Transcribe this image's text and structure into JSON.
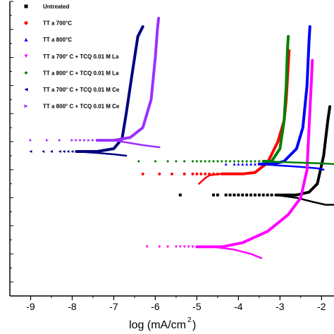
{
  "chart_data": {
    "type": "line",
    "xlabel": "log (mA/cm",
    "xlabel_sup": "2",
    "xlabel_close": ")",
    "ylabel": "",
    "xlim": [
      -9.5,
      -1.7
    ],
    "ylim": [
      -1.8,
      0.3
    ],
    "x_ticks": [
      "-9",
      "-8",
      "-7",
      "-6",
      "-5",
      "-4",
      "-3",
      "-2"
    ],
    "legend_placement": "top-left",
    "series": [
      {
        "name": "Untreated",
        "color": "#000000",
        "marker": "square",
        "curve": [
          [
            -3.1,
            -1.08
          ],
          [
            -2.6,
            -1.08
          ],
          [
            -2.3,
            -1.06
          ],
          [
            -2.1,
            -1.0
          ],
          [
            -1.95,
            -0.8
          ],
          [
            -1.85,
            -0.55
          ],
          [
            -1.8,
            -0.45
          ]
        ],
        "tail": [
          [
            -3.1,
            -1.08
          ],
          [
            -2.6,
            -1.1
          ],
          [
            -2.2,
            -1.13
          ],
          [
            -1.9,
            -1.15
          ],
          [
            -1.7,
            -1.15
          ]
        ],
        "points": [
          [
            -5.4,
            -1.08
          ],
          [
            -4.6,
            -1.08
          ],
          [
            -4.5,
            -1.08
          ],
          [
            -4.3,
            -1.08
          ],
          [
            -4.2,
            -1.08
          ],
          [
            -4.1,
            -1.08
          ],
          [
            -4.0,
            -1.08
          ],
          [
            -3.9,
            -1.08
          ],
          [
            -3.8,
            -1.08
          ],
          [
            -3.7,
            -1.08
          ],
          [
            -3.6,
            -1.08
          ],
          [
            -3.5,
            -1.08
          ],
          [
            -3.4,
            -1.08
          ],
          [
            -3.3,
            -1.08
          ],
          [
            -3.2,
            -1.08
          ]
        ]
      },
      {
        "name": "TT a 700°C",
        "color": "#ff0000",
        "marker": "circle",
        "curve": [
          [
            -4.4,
            -0.93
          ],
          [
            -3.9,
            -0.93
          ],
          [
            -3.6,
            -0.92
          ],
          [
            -3.3,
            -0.85
          ],
          [
            -3.05,
            -0.7
          ],
          [
            -2.9,
            -0.55
          ],
          [
            -2.85,
            -0.4
          ],
          [
            -2.8,
            -0.15
          ],
          [
            -2.78,
            -0.05
          ]
        ],
        "tail": [
          [
            -4.4,
            -0.93
          ],
          [
            -4.7,
            -0.94
          ],
          [
            -4.8,
            -0.96
          ],
          [
            -4.95,
            -1.0
          ]
        ],
        "points": [
          [
            -6.3,
            -0.93
          ],
          [
            -5.9,
            -0.93
          ],
          [
            -5.6,
            -0.93
          ],
          [
            -5.3,
            -0.93
          ],
          [
            -5.1,
            -0.93
          ],
          [
            -5.0,
            -0.93
          ],
          [
            -4.9,
            -0.93
          ],
          [
            -4.8,
            -0.93
          ],
          [
            -4.7,
            -0.93
          ],
          [
            -4.6,
            -0.93
          ],
          [
            -4.5,
            -0.93
          ]
        ]
      },
      {
        "name": "TT a 800°C",
        "color": "#0000ff",
        "marker": "triangle-up",
        "curve": [
          [
            -3.5,
            -0.86
          ],
          [
            -3.2,
            -0.86
          ],
          [
            -2.9,
            -0.84
          ],
          [
            -2.6,
            -0.75
          ],
          [
            -2.45,
            -0.6
          ],
          [
            -2.35,
            -0.3
          ],
          [
            -2.3,
            0.02
          ],
          [
            -2.28,
            0.12
          ]
        ],
        "tail": [
          [
            -3.5,
            -0.86
          ],
          [
            -3.0,
            -0.87
          ],
          [
            -2.5,
            -0.88
          ],
          [
            -2.1,
            -0.89
          ],
          [
            -1.95,
            -0.9
          ]
        ],
        "points": [
          [
            -4.3,
            -0.86
          ],
          [
            -4.1,
            -0.86
          ],
          [
            -4.0,
            -0.86
          ],
          [
            -3.9,
            -0.86
          ],
          [
            -3.8,
            -0.86
          ],
          [
            -3.7,
            -0.86
          ],
          [
            -3.6,
            -0.86
          ]
        ]
      },
      {
        "name": "TT a 700° C + TCQ 0.01 M La",
        "color": "#ff00ff",
        "marker": "triangle-down",
        "curve": [
          [
            -5.0,
            -1.45
          ],
          [
            -4.4,
            -1.45
          ],
          [
            -3.9,
            -1.42
          ],
          [
            -3.3,
            -1.34
          ],
          [
            -2.8,
            -1.22
          ],
          [
            -2.5,
            -1.1
          ],
          [
            -2.35,
            -0.9
          ],
          [
            -2.3,
            -0.6
          ],
          [
            -2.25,
            -0.3
          ],
          [
            -2.22,
            -0.12
          ]
        ],
        "tail": [
          [
            -4.6,
            -1.45
          ],
          [
            -4.1,
            -1.47
          ],
          [
            -3.7,
            -1.5
          ],
          [
            -3.45,
            -1.53
          ]
        ],
        "points": [
          [
            -6.2,
            -1.45
          ],
          [
            -5.9,
            -1.45
          ],
          [
            -5.7,
            -1.45
          ],
          [
            -5.5,
            -1.45
          ],
          [
            -5.4,
            -1.45
          ],
          [
            -5.3,
            -1.45
          ],
          [
            -5.2,
            -1.45
          ],
          [
            -5.1,
            -1.45
          ]
        ]
      },
      {
        "name": "TT a 800° C + TCQ 0.01 M La",
        "color": "#008000",
        "marker": "diamond",
        "curve": [
          [
            -3.4,
            -0.84
          ],
          [
            -3.2,
            -0.84
          ],
          [
            -3.0,
            -0.75
          ],
          [
            -2.9,
            -0.55
          ],
          [
            -2.85,
            -0.3
          ],
          [
            -2.82,
            -0.05
          ],
          [
            -2.8,
            0.05
          ]
        ],
        "tail": [
          [
            -3.4,
            -0.84
          ],
          [
            -3.0,
            -0.845
          ],
          [
            -2.5,
            -0.85
          ],
          [
            -2.0,
            -0.855
          ],
          [
            -1.7,
            -0.86
          ]
        ],
        "points": [
          [
            -6.4,
            -0.84
          ],
          [
            -6.0,
            -0.84
          ],
          [
            -5.7,
            -0.84
          ],
          [
            -5.5,
            -0.84
          ],
          [
            -5.3,
            -0.84
          ],
          [
            -5.1,
            -0.84
          ],
          [
            -5.0,
            -0.84
          ],
          [
            -4.9,
            -0.84
          ],
          [
            -4.8,
            -0.84
          ],
          [
            -4.7,
            -0.84
          ],
          [
            -4.6,
            -0.84
          ],
          [
            -4.5,
            -0.84
          ],
          [
            -4.4,
            -0.84
          ],
          [
            -4.3,
            -0.84
          ],
          [
            -4.2,
            -0.84
          ],
          [
            -4.1,
            -0.84
          ],
          [
            -4.0,
            -0.84
          ],
          [
            -3.9,
            -0.84
          ],
          [
            -3.8,
            -0.84
          ],
          [
            -3.7,
            -0.84
          ],
          [
            -3.6,
            -0.84
          ],
          [
            -3.5,
            -0.84
          ]
        ]
      },
      {
        "name": "TT a 700° C + TCQ 0.01 M Ce",
        "color": "#000080",
        "marker": "triangle-left",
        "curve": [
          [
            -7.9,
            -0.77
          ],
          [
            -7.4,
            -0.77
          ],
          [
            -7.0,
            -0.75
          ],
          [
            -6.8,
            -0.68
          ],
          [
            -6.7,
            -0.5
          ],
          [
            -6.55,
            -0.2
          ],
          [
            -6.42,
            0.05
          ],
          [
            -6.3,
            0.12
          ]
        ],
        "tail": [
          [
            -7.9,
            -0.77
          ],
          [
            -7.4,
            -0.78
          ],
          [
            -7.0,
            -0.79
          ],
          [
            -6.7,
            -0.8
          ]
        ],
        "points": [
          [
            -9.0,
            -0.77
          ],
          [
            -8.7,
            -0.77
          ],
          [
            -8.5,
            -0.77
          ],
          [
            -8.3,
            -0.77
          ],
          [
            -8.2,
            -0.77
          ],
          [
            -8.1,
            -0.77
          ],
          [
            -8.0,
            -0.77
          ]
        ]
      },
      {
        "name": "TT a 800° C + TCQ 0.01 M Ce",
        "color": "#9b30ff",
        "marker": "triangle-right",
        "curve": [
          [
            -7.4,
            -0.69
          ],
          [
            -7.0,
            -0.69
          ],
          [
            -6.6,
            -0.67
          ],
          [
            -6.3,
            -0.6
          ],
          [
            -6.1,
            -0.4
          ],
          [
            -6.0,
            -0.1
          ],
          [
            -5.95,
            0.1
          ],
          [
            -5.92,
            0.18
          ]
        ],
        "tail": [
          [
            -7.4,
            -0.69
          ],
          [
            -7.0,
            -0.69
          ],
          [
            -6.6,
            -0.71
          ],
          [
            -6.3,
            -0.725
          ],
          [
            -5.9,
            -0.74
          ]
        ],
        "points": [
          [
            -9.0,
            -0.69
          ],
          [
            -8.6,
            -0.69
          ],
          [
            -8.3,
            -0.69
          ],
          [
            -8.0,
            -0.69
          ],
          [
            -7.9,
            -0.69
          ],
          [
            -7.8,
            -0.69
          ],
          [
            -7.7,
            -0.69
          ],
          [
            -7.6,
            -0.69
          ],
          [
            -7.5,
            -0.69
          ]
        ]
      }
    ]
  }
}
